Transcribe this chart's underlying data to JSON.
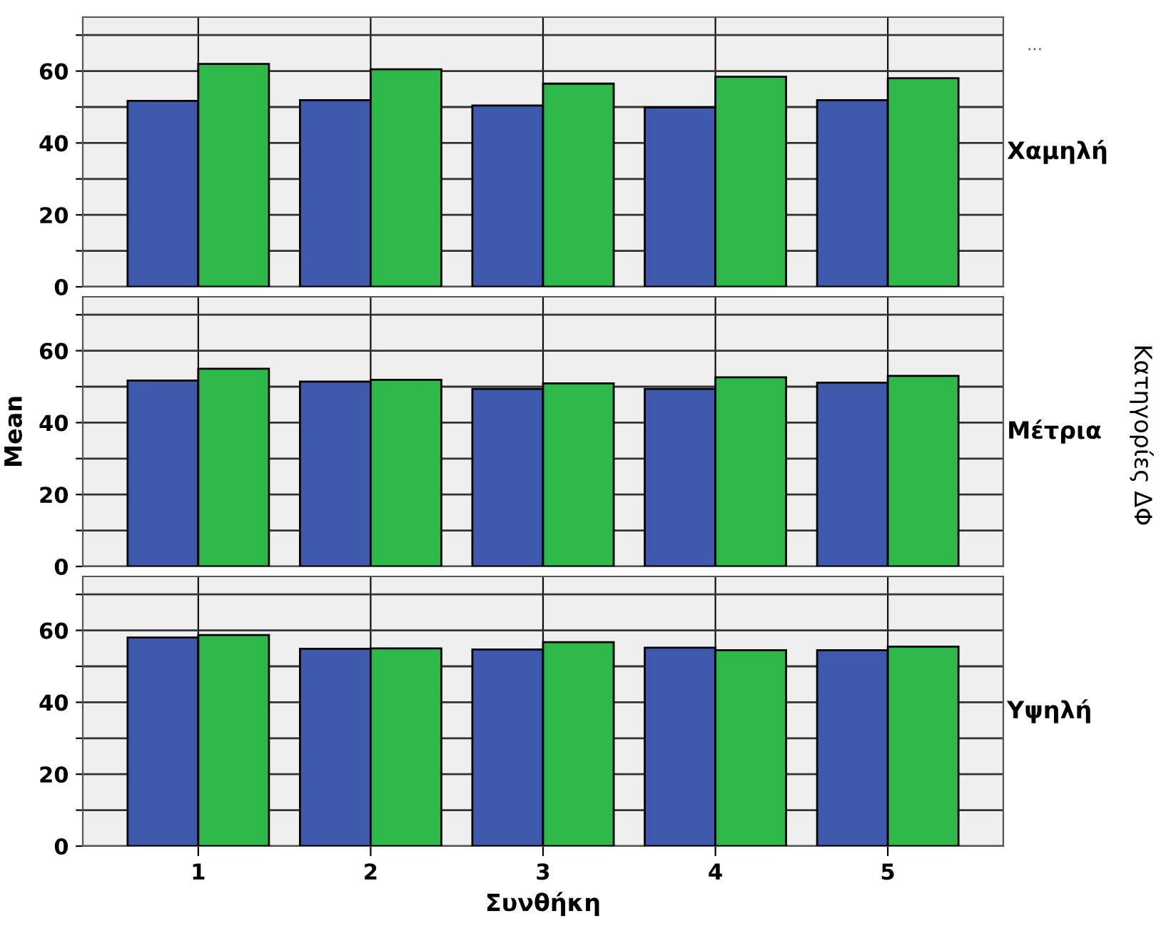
{
  "chart_data": [
    {
      "type": "bar",
      "categories": [
        "1",
        "2",
        "3",
        "4",
        "5"
      ],
      "ylim": [
        0,
        75
      ],
      "yticks": [
        0,
        {
          "value": 10,
          "label": null
        },
        20,
        {
          "value": 30,
          "label": null
        },
        40,
        {
          "value": 50,
          "label": null
        },
        60,
        {
          "value": 70,
          "label": null
        }
      ],
      "grid": true,
      "tick_labels": "y",
      "y2label": "Χαμηλή",
      "annotations": [
        "…"
      ],
      "series": [
        {
          "color": "#3e58ac",
          "values": [
            51.7,
            51.9,
            50.4,
            49.9,
            51.9
          ]
        },
        {
          "color": "#2fb84a",
          "values": [
            62.0,
            60.5,
            56.5,
            58.4,
            58.0
          ]
        }
      ]
    },
    {
      "type": "bar",
      "categories": [
        "1",
        "2",
        "3",
        "4",
        "5"
      ],
      "ylim": [
        0,
        75
      ],
      "yticks": [
        0,
        {
          "value": 10,
          "label": null
        },
        20,
        {
          "value": 30,
          "label": null
        },
        40,
        {
          "value": 50,
          "label": null
        },
        60,
        {
          "value": 70,
          "label": null
        }
      ],
      "grid": true,
      "tick_labels": "y",
      "ylabel": "Mean",
      "y2label": "Μέτρια",
      "annotations": [
        "Κατηγορίες ΔΦ"
      ],
      "series": [
        {
          "color": "#3e58ac",
          "values": [
            51.7,
            51.4,
            49.4,
            49.4,
            51.1
          ]
        },
        {
          "color": "#2fb84a",
          "values": [
            55.0,
            51.9,
            50.9,
            52.6,
            53.0
          ]
        }
      ]
    },
    {
      "type": "bar",
      "categories": [
        "1",
        "2",
        "3",
        "4",
        "5"
      ],
      "ylim": [
        0,
        75
      ],
      "yticks": [
        0,
        {
          "value": 10,
          "label": null
        },
        20,
        {
          "value": 30,
          "label": null
        },
        40,
        {
          "value": 50,
          "label": null
        },
        60,
        {
          "value": 70,
          "label": null
        }
      ],
      "grid": true,
      "xlabel": "Συνθήκη",
      "y2label": "Υψηλή",
      "series": [
        {
          "color": "#3e58ac",
          "values": [
            58.0,
            54.9,
            54.7,
            55.2,
            54.5
          ]
        },
        {
          "color": "#2fb84a",
          "values": [
            58.7,
            55.0,
            56.7,
            54.5,
            55.5
          ]
        }
      ]
    }
  ]
}
